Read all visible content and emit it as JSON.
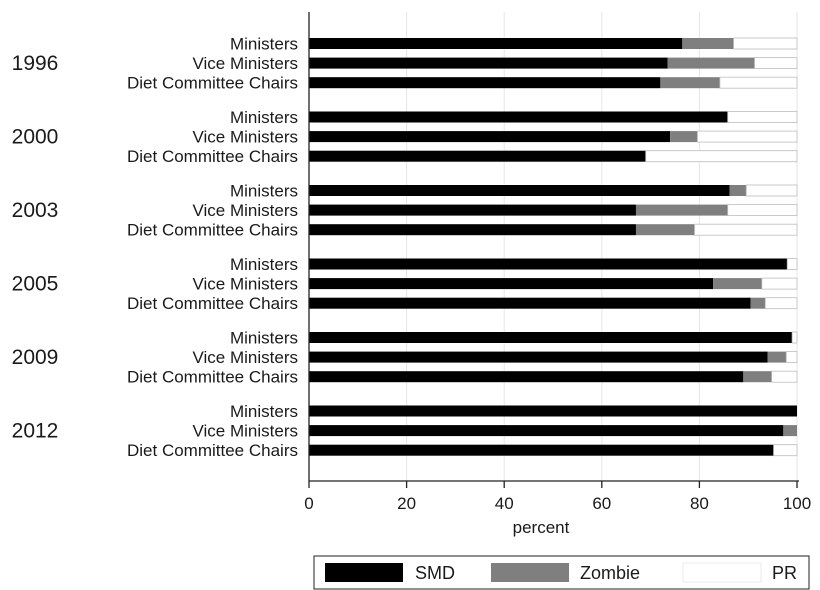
{
  "chart_data": {
    "type": "bar",
    "stacked": true,
    "orientation": "horizontal",
    "xlabel": "percent",
    "xlim": [
      0,
      100
    ],
    "xticks": [
      0,
      20,
      40,
      60,
      80,
      100
    ],
    "grid": true,
    "legend_position": "bottom",
    "groups": [
      {
        "label": "1996",
        "rows": [
          {
            "label": "Ministers",
            "values": [
              76.5,
              10.5,
              13.0
            ]
          },
          {
            "label": "Vice Ministers",
            "values": [
              73.5,
              17.8,
              8.7
            ]
          },
          {
            "label": "Diet Committee Chairs",
            "values": [
              72.0,
              12.2,
              15.8
            ]
          }
        ]
      },
      {
        "label": "2000",
        "rows": [
          {
            "label": "Ministers",
            "values": [
              85.8,
              0.0,
              14.2
            ]
          },
          {
            "label": "Vice Ministers",
            "values": [
              74.0,
              5.6,
              20.4
            ]
          },
          {
            "label": "Diet Committee Chairs",
            "values": [
              69.0,
              0.0,
              31.0
            ]
          }
        ]
      },
      {
        "label": "2003",
        "rows": [
          {
            "label": "Ministers",
            "values": [
              86.2,
              3.4,
              10.4
            ]
          },
          {
            "label": "Vice Ministers",
            "values": [
              67.0,
              18.8,
              14.2
            ]
          },
          {
            "label": "Diet Committee Chairs",
            "values": [
              67.0,
              12.0,
              21.0
            ]
          }
        ]
      },
      {
        "label": "2005",
        "rows": [
          {
            "label": "Ministers",
            "values": [
              98.0,
              0.0,
              2.0
            ]
          },
          {
            "label": "Vice Ministers",
            "values": [
              82.8,
              10.0,
              7.2
            ]
          },
          {
            "label": "Diet Committee Chairs",
            "values": [
              90.5,
              3.0,
              6.5
            ]
          }
        ]
      },
      {
        "label": "2009",
        "rows": [
          {
            "label": "Ministers",
            "values": [
              99.0,
              0.0,
              1.0
            ]
          },
          {
            "label": "Vice Ministers",
            "values": [
              94.0,
              3.8,
              2.2
            ]
          },
          {
            "label": "Diet Committee Chairs",
            "values": [
              89.0,
              5.8,
              5.2
            ]
          }
        ]
      },
      {
        "label": "2012",
        "rows": [
          {
            "label": "Ministers",
            "values": [
              100.0,
              0.0,
              0.0
            ]
          },
          {
            "label": "Vice Ministers",
            "values": [
              97.2,
              2.8,
              0.0
            ]
          },
          {
            "label": "Diet Committee Chairs",
            "values": [
              95.2,
              0.0,
              4.8
            ]
          }
        ]
      }
    ],
    "series": [
      {
        "name": "SMD",
        "color": "#000000"
      },
      {
        "name": "Zombie",
        "color": "#7f7f7f"
      },
      {
        "name": "PR",
        "color": "#ffffff"
      }
    ]
  }
}
